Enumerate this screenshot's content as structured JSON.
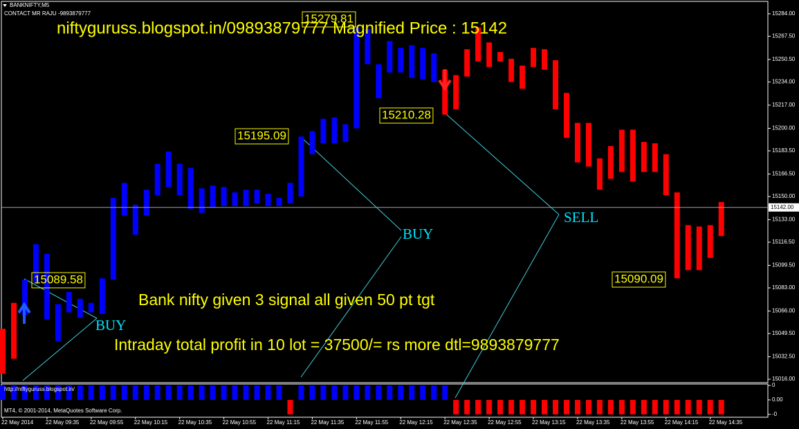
{
  "chart_data": {
    "type": "range-bar",
    "symbol": "BANKNIFTY,M5",
    "contact": "CONTACT MR RAJU -9893879777",
    "title": "niftyguruss.blogspot.in/09893879777 Magnified Price : 15142",
    "annotations": [
      "Bank nifty given 3 signal all given 50 pt tgt",
      "Intraday total profit in 10 lot = 37500/= rs more dtl=9893879777"
    ],
    "price_labels": [
      "15279.81",
      "15195.09",
      "15210.28",
      "15089.58",
      "15090.09"
    ],
    "signal_labels": [
      "BUY",
      "BUY",
      "SELL"
    ],
    "ylim": [
      15013.5,
      15293.1
    ],
    "yticks": [
      {
        "value": 15284,
        "label": "15284.00"
      },
      {
        "value": 15267.5,
        "label": "15267.50"
      },
      {
        "value": 15250.5,
        "label": "15250.50"
      },
      {
        "value": 15234,
        "label": "15234.00"
      },
      {
        "value": 15217,
        "label": "15217.00"
      },
      {
        "value": 15200,
        "label": "15200.00"
      },
      {
        "value": 15183.5,
        "label": "15183.50"
      },
      {
        "value": 15166.5,
        "label": "15166.50"
      },
      {
        "value": 15150,
        "label": "15150.00"
      },
      {
        "value": 15133,
        "label": "15133.00"
      },
      {
        "value": 15116.5,
        "label": "15116.50"
      },
      {
        "value": 15099.5,
        "label": "15099.50"
      },
      {
        "value": 15083,
        "label": "15083.00"
      },
      {
        "value": 15066,
        "label": "15066.00"
      },
      {
        "value": 15049.5,
        "label": "15049.50"
      },
      {
        "value": 15032.5,
        "label": "15032.50"
      },
      {
        "value": 15016,
        "label": "15016.00"
      }
    ],
    "price_line": {
      "value": 15142,
      "label": "15142.00"
    },
    "x_labels": [
      "22 May 2014",
      "22 May 09:35",
      "22 May 09:55",
      "22 May 10:15",
      "22 May 10:35",
      "22 May 10:55",
      "22 May 11:15",
      "22 May 11:35",
      "22 May 11:55",
      "22 May 12:15",
      "22 May 12:35",
      "22 May 12:55",
      "22 May 13:15",
      "22 May 13:35",
      "22 May 13:55",
      "22 May 14:15",
      "22 May 14:35"
    ],
    "series": [
      {
        "color": "#0000ff",
        "low": [
          null,
          null,
          15063,
          15087,
          15060,
          15044,
          15065,
          15061,
          15065,
          15064,
          15089,
          15136,
          15122,
          15136,
          15151,
          15157,
          15151,
          15141,
          15138,
          15142,
          15143,
          15143,
          15143,
          15145,
          15143,
          15143,
          15145,
          15150,
          15181,
          15189,
          15189,
          15190,
          15200,
          15247,
          15222,
          15241,
          15241,
          15237,
          15236,
          15234,
          null,
          null,
          null,
          null,
          null,
          null,
          null,
          null,
          null,
          null,
          null,
          null,
          null,
          null,
          null,
          null,
          null,
          null,
          null,
          null,
          null,
          null,
          null,
          null,
          null,
          null
        ],
        "high": [
          null,
          null,
          15089,
          15115,
          15108,
          15071,
          15080,
          15075,
          15072,
          15090,
          15149,
          15160,
          15144,
          15155,
          15174,
          15183,
          15174,
          15171,
          15156,
          15158,
          15157,
          15153,
          15155,
          15155,
          15152,
          15149,
          15160,
          15194,
          15198,
          15207,
          15208,
          15203,
          15274,
          15273,
          15247,
          15264,
          15259,
          15261,
          15259,
          15255,
          null,
          null,
          null,
          null,
          null,
          null,
          null,
          null,
          null,
          null,
          null,
          null,
          null,
          null,
          null,
          null,
          null,
          null,
          null,
          null,
          null,
          null,
          null,
          null,
          null,
          null
        ]
      },
      {
        "color": "#ff0000",
        "low": [
          15020,
          15031,
          null,
          null,
          null,
          null,
          null,
          null,
          null,
          null,
          null,
          null,
          null,
          null,
          null,
          null,
          null,
          null,
          null,
          null,
          null,
          null,
          null,
          null,
          null,
          null,
          null,
          null,
          null,
          null,
          null,
          null,
          null,
          null,
          null,
          null,
          null,
          null,
          null,
          null,
          15210,
          15214,
          15238,
          15249,
          15245,
          15249,
          15234,
          15229,
          15245,
          15243,
          15214,
          15193,
          15175,
          15172,
          15155,
          15163,
          15168,
          15161,
          15168,
          15168,
          15151,
          15090,
          15096,
          15096,
          15105,
          15121
        ],
        "high": [
          15053,
          15072,
          null,
          null,
          null,
          null,
          null,
          null,
          null,
          null,
          null,
          null,
          null,
          null,
          null,
          null,
          null,
          null,
          null,
          null,
          null,
          null,
          null,
          null,
          null,
          null,
          null,
          null,
          null,
          null,
          null,
          null,
          null,
          null,
          null,
          null,
          null,
          null,
          null,
          null,
          15243,
          15239,
          15258,
          15274,
          15263,
          15256,
          15251,
          15246,
          15259,
          15258,
          15250,
          15226,
          15204,
          15204,
          15178,
          15187,
          15199,
          15199,
          15190,
          15189,
          15181,
          15153,
          15129,
          15128,
          15129,
          15146
        ]
      }
    ],
    "indicator": {
      "label": "http://niftyguruss.blogspot.in/",
      "ylim": [
        -1.2,
        1.1
      ],
      "yticks": [
        {
          "value": 1,
          "label": "0"
        },
        {
          "value": 0,
          "label": "0.00"
        },
        {
          "value": -1,
          "label": "-0"
        }
      ],
      "up_color": "#0000ff",
      "down_color": "#ff0000",
      "values": [
        1,
        1,
        1,
        1,
        1,
        1,
        1,
        1,
        1,
        1,
        1,
        1,
        1,
        1,
        1,
        1,
        1,
        1,
        1,
        1,
        1,
        1,
        1,
        1,
        1,
        1,
        -1,
        1,
        1,
        1,
        1,
        1,
        1,
        1,
        1,
        1,
        1,
        1,
        1,
        1,
        1,
        -1,
        -1,
        -1,
        -1,
        -1,
        -1,
        -1,
        -1,
        -1,
        -1,
        -1,
        -1,
        -1,
        -1,
        -1,
        -1,
        -1,
        -1,
        -1,
        -1,
        -1,
        -1,
        -1,
        -1,
        -1
      ]
    },
    "copyright": "MT4, © 2001-2014, MetaQuotes Software Corp."
  }
}
